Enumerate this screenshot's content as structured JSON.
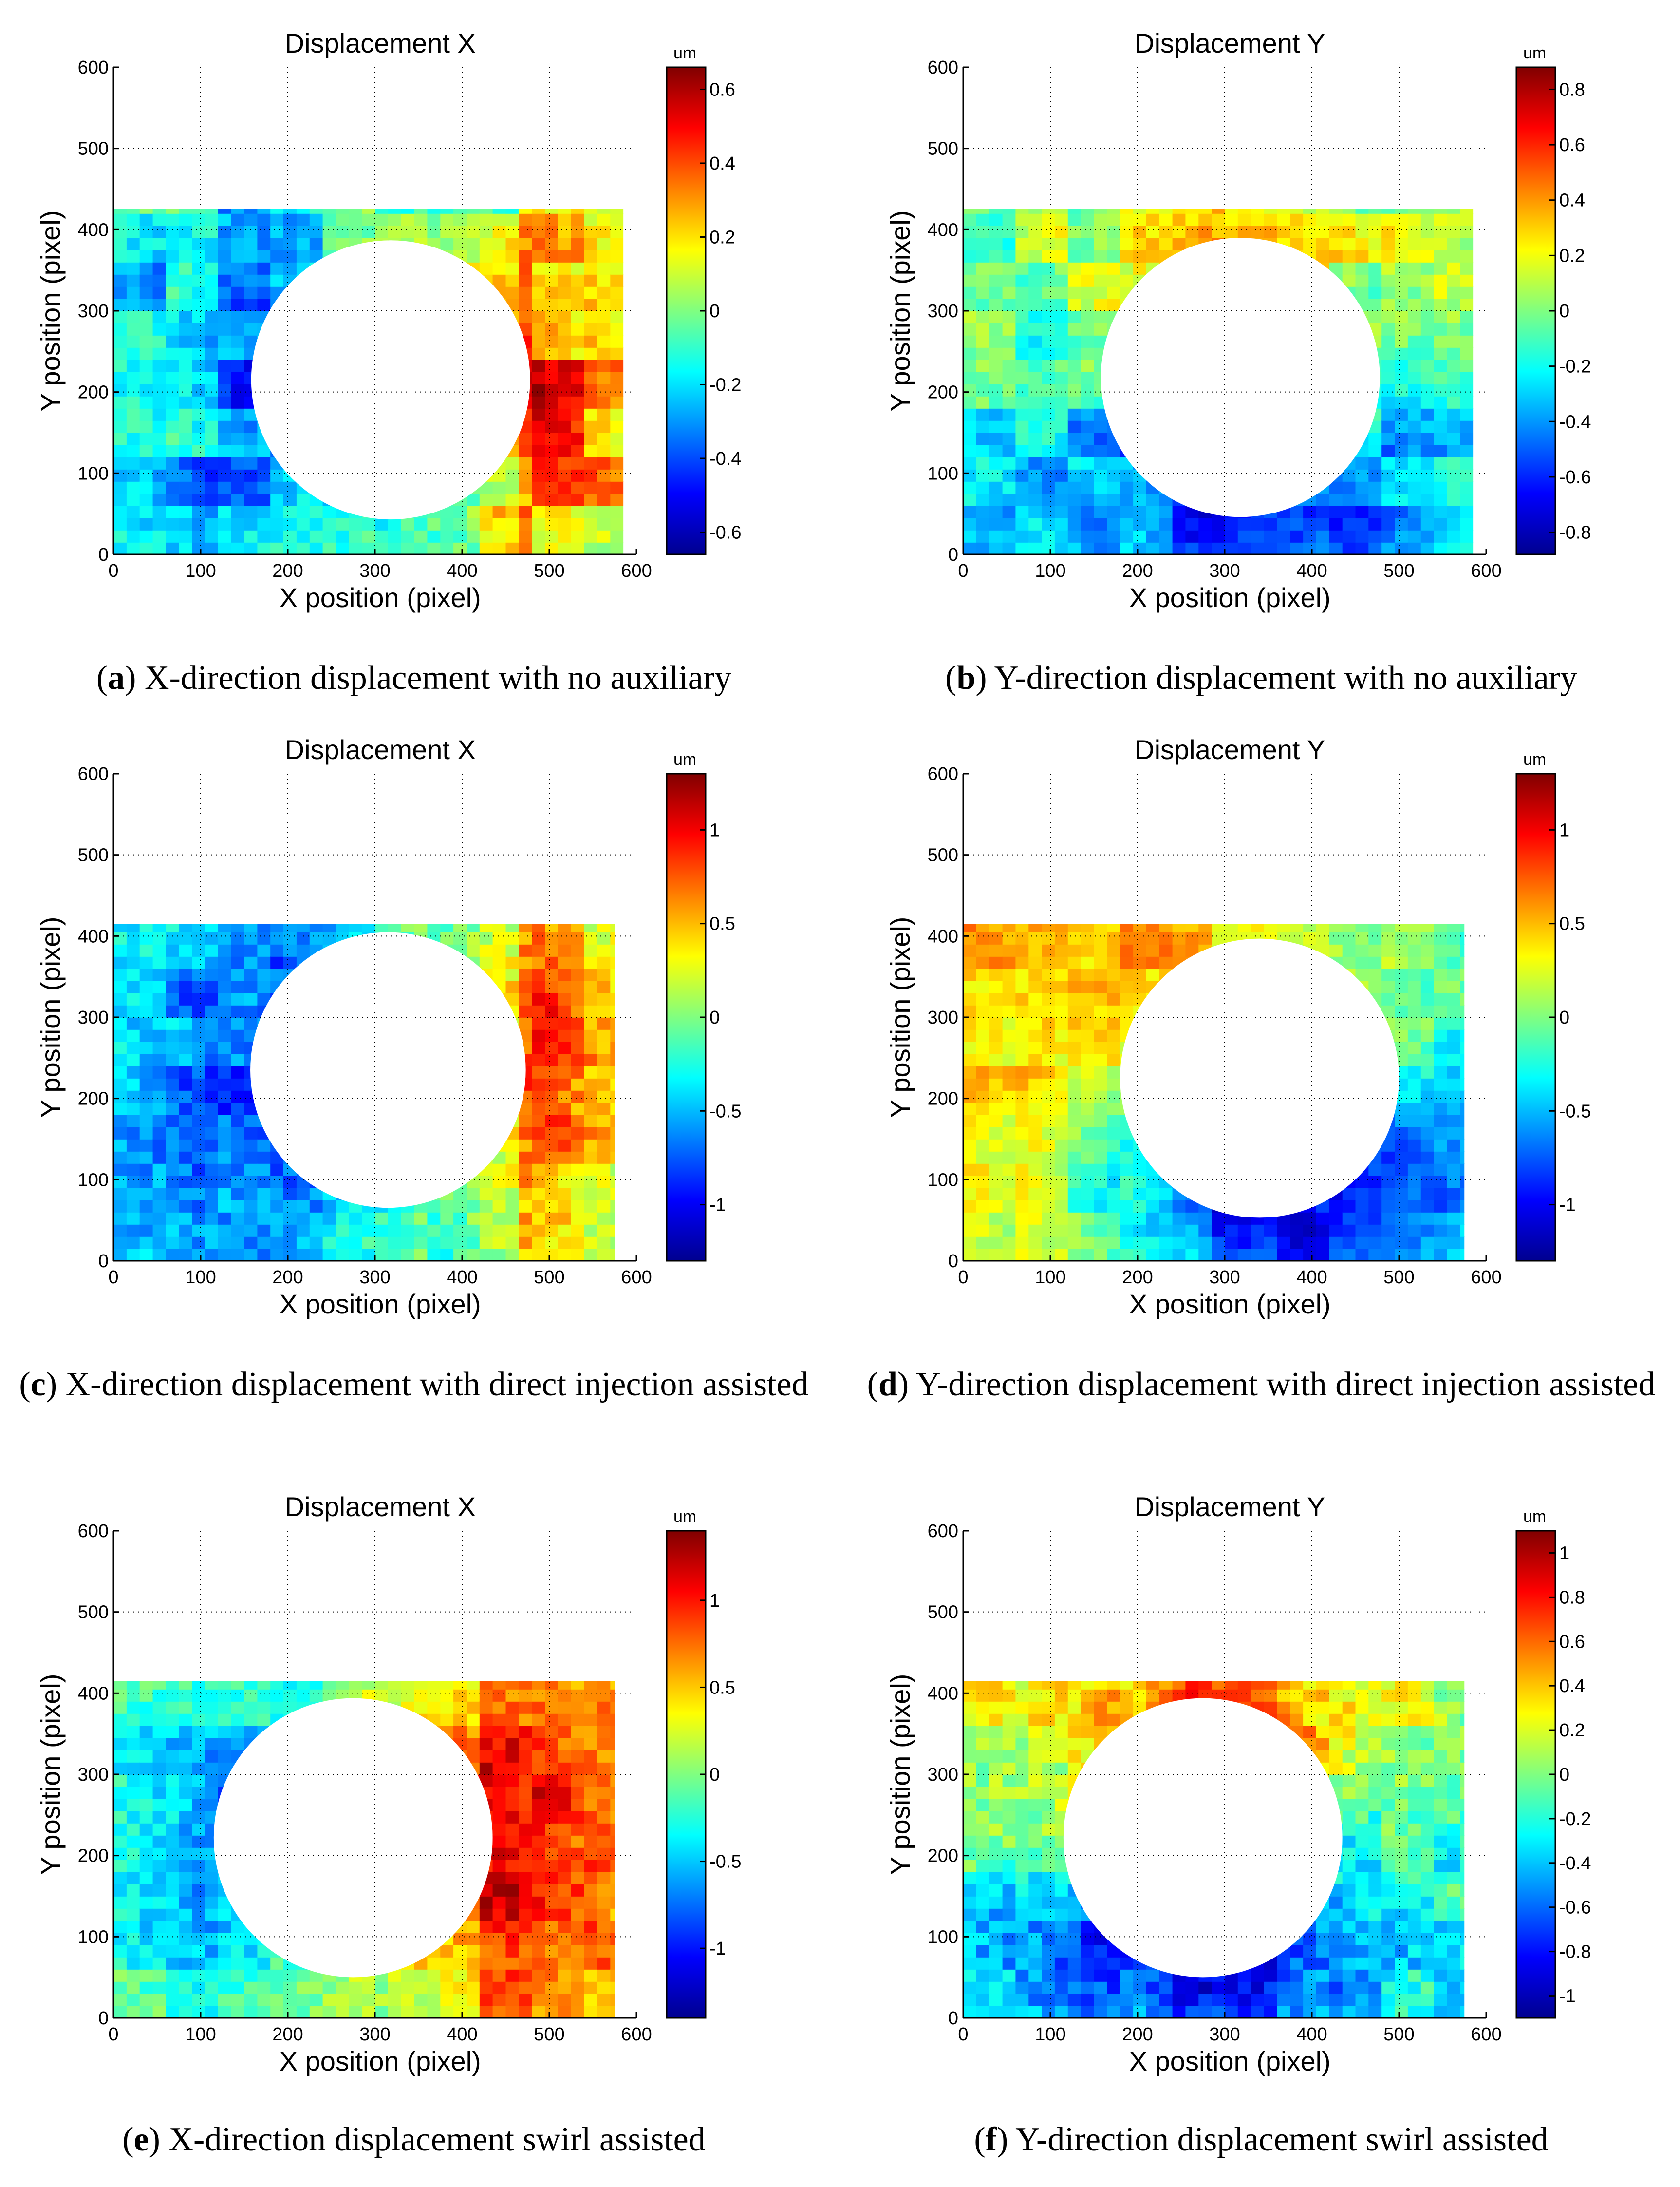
{
  "colormap": [
    "#00008f",
    "#0000ff",
    "#0080ff",
    "#00ffff",
    "#80ff80",
    "#ffff00",
    "#ff8000",
    "#ff0000",
    "#800000"
  ],
  "chart_data": [
    {
      "id": "a",
      "type": "heatmap",
      "title": "Displacement X",
      "xlabel": "X position (pixel)",
      "ylabel": "Y position (pixel)",
      "xlim": [
        0,
        600
      ],
      "ylim": [
        0,
        600
      ],
      "xticks": [
        0,
        100,
        200,
        300,
        400,
        500,
        600
      ],
      "yticks": [
        0,
        100,
        200,
        300,
        400,
        500,
        600
      ],
      "field_extent": {
        "x": [
          0,
          585
        ],
        "y": [
          0,
          425
        ]
      },
      "hole": {
        "cx": 318,
        "cy": 215,
        "r": 160
      },
      "colorbar": {
        "unit": "um",
        "range": [
          -0.66,
          0.66
        ],
        "ticks": [
          -0.6,
          -0.4,
          -0.2,
          0,
          0.2,
          0.4,
          0.6
        ],
        "tick_labels": [
          "-0.6",
          "-0.4",
          "-0.2",
          "0",
          "0.2",
          "0.4",
          "0.6"
        ]
      },
      "pattern": {
        "mode": "x",
        "left": -0.3,
        "right": 0.45,
        "base": -0.1
      },
      "caption_letter": "a",
      "caption_text": " X-direction displacement with no auxiliary"
    },
    {
      "id": "b",
      "type": "heatmap",
      "title": "Displacement Y",
      "xlabel": "X position (pixel)",
      "ylabel": "Y position (pixel)",
      "xlim": [
        0,
        600
      ],
      "ylim": [
        0,
        600
      ],
      "xticks": [
        0,
        100,
        200,
        300,
        400,
        500,
        600
      ],
      "yticks": [
        0,
        100,
        200,
        300,
        400,
        500,
        600
      ],
      "field_extent": {
        "x": [
          0,
          585
        ],
        "y": [
          0,
          425
        ]
      },
      "hole": {
        "cx": 318,
        "cy": 218,
        "r": 160
      },
      "colorbar": {
        "unit": "um",
        "range": [
          -0.88,
          0.88
        ],
        "ticks": [
          -0.8,
          -0.6,
          -0.4,
          -0.2,
          0,
          0.2,
          0.4,
          0.6,
          0.8
        ],
        "tick_labels": [
          "-0.8",
          "-0.6",
          "-0.4",
          "-0.2",
          "0",
          "0.2",
          "0.4",
          "0.6",
          "0.8"
        ]
      },
      "pattern": {
        "mode": "y",
        "top": 0.55,
        "bottom": -0.55,
        "base": -0.15
      },
      "caption_letter": "b",
      "caption_text": " Y-direction displacement with no auxiliary"
    },
    {
      "id": "c",
      "type": "heatmap",
      "title": "Displacement X",
      "xlabel": "X position (pixel)",
      "ylabel": "Y position (pixel)",
      "xlim": [
        0,
        600
      ],
      "ylim": [
        0,
        600
      ],
      "xticks": [
        0,
        100,
        200,
        300,
        400,
        500,
        600
      ],
      "yticks": [
        0,
        100,
        200,
        300,
        400,
        500,
        600
      ],
      "field_extent": {
        "x": [
          0,
          575
        ],
        "y": [
          0,
          415
        ]
      },
      "hole": {
        "cx": 315,
        "cy": 235,
        "r": 158
      },
      "colorbar": {
        "unit": "um",
        "range": [
          -1.3,
          1.3
        ],
        "ticks": [
          -1,
          -0.5,
          0,
          0.5,
          1
        ],
        "tick_labels": [
          "-1",
          "-0.5",
          "0",
          "0.5",
          "1"
        ]
      },
      "pattern": {
        "mode": "x",
        "left": -0.6,
        "right": 1.0,
        "base": -0.3
      },
      "caption_letter": "c",
      "caption_text": " X-direction displacement with direct injection assisted"
    },
    {
      "id": "d",
      "type": "heatmap",
      "title": "Displacement Y",
      "xlabel": "X position (pixel)",
      "ylabel": "Y position (pixel)",
      "xlim": [
        0,
        600
      ],
      "ylim": [
        0,
        600
      ],
      "xticks": [
        0,
        100,
        200,
        300,
        400,
        500,
        600
      ],
      "yticks": [
        0,
        100,
        200,
        300,
        400,
        500,
        600
      ],
      "field_extent": {
        "x": [
          0,
          575
        ],
        "y": [
          0,
          415
        ]
      },
      "hole": {
        "cx": 340,
        "cy": 225,
        "r": 160
      },
      "colorbar": {
        "unit": "um",
        "range": [
          -1.3,
          1.3
        ],
        "ticks": [
          -1,
          -0.5,
          0,
          0.5,
          1
        ],
        "tick_labels": [
          "-1",
          "-0.5",
          "0",
          "0.5",
          "1"
        ]
      },
      "pattern": {
        "mode": "d",
        "top": 0.7,
        "bottom": -0.9,
        "left": 0.55,
        "base": -0.3
      },
      "caption_letter": "d",
      "caption_text": " Y-direction displacement with direct injection assisted"
    },
    {
      "id": "e",
      "type": "heatmap",
      "title": "Displacement X",
      "xlabel": "X position (pixel)",
      "ylabel": "Y position (pixel)",
      "xlim": [
        0,
        600
      ],
      "ylim": [
        0,
        600
      ],
      "xticks": [
        0,
        100,
        200,
        300,
        400,
        500,
        600
      ],
      "yticks": [
        0,
        100,
        200,
        300,
        400,
        500,
        600
      ],
      "field_extent": {
        "x": [
          0,
          575
        ],
        "y": [
          0,
          415
        ]
      },
      "hole": {
        "cx": 275,
        "cy": 222,
        "r": 160
      },
      "colorbar": {
        "unit": "um",
        "range": [
          -1.4,
          1.4
        ],
        "ticks": [
          -1,
          -0.5,
          0,
          0.5,
          1
        ],
        "tick_labels": [
          "-1",
          "-0.5",
          "0",
          "0.5",
          "1"
        ]
      },
      "pattern": {
        "mode": "x",
        "left": -0.9,
        "right": 1.0,
        "base": 0.05
      },
      "caption_letter": "e",
      "caption_text": " X-direction displacement swirl assisted"
    },
    {
      "id": "f",
      "type": "heatmap",
      "title": "Displacement Y",
      "xlabel": "X position (pixel)",
      "ylabel": "Y position (pixel)",
      "xlim": [
        0,
        600
      ],
      "ylim": [
        0,
        600
      ],
      "xticks": [
        0,
        100,
        200,
        300,
        400,
        500,
        600
      ],
      "yticks": [
        0,
        100,
        200,
        300,
        400,
        500,
        600
      ],
      "field_extent": {
        "x": [
          0,
          575
        ],
        "y": [
          0,
          415
        ]
      },
      "hole": {
        "cx": 275,
        "cy": 222,
        "r": 160
      },
      "colorbar": {
        "unit": "um",
        "range": [
          -1.1,
          1.1
        ],
        "ticks": [
          -1,
          -0.8,
          -0.6,
          -0.4,
          -0.2,
          0,
          0.2,
          0.4,
          0.6,
          0.8,
          1
        ],
        "tick_labels": [
          "-1",
          "-0.8",
          "-0.6",
          "-0.4",
          "-0.2",
          "0",
          "0.2",
          "0.4",
          "0.6",
          "0.8",
          "1"
        ]
      },
      "pattern": {
        "mode": "y",
        "top": 0.9,
        "bottom": -0.9,
        "base": -0.1
      },
      "caption_letter": "f",
      "caption_text": " Y-direction displacement swirl assisted"
    }
  ]
}
